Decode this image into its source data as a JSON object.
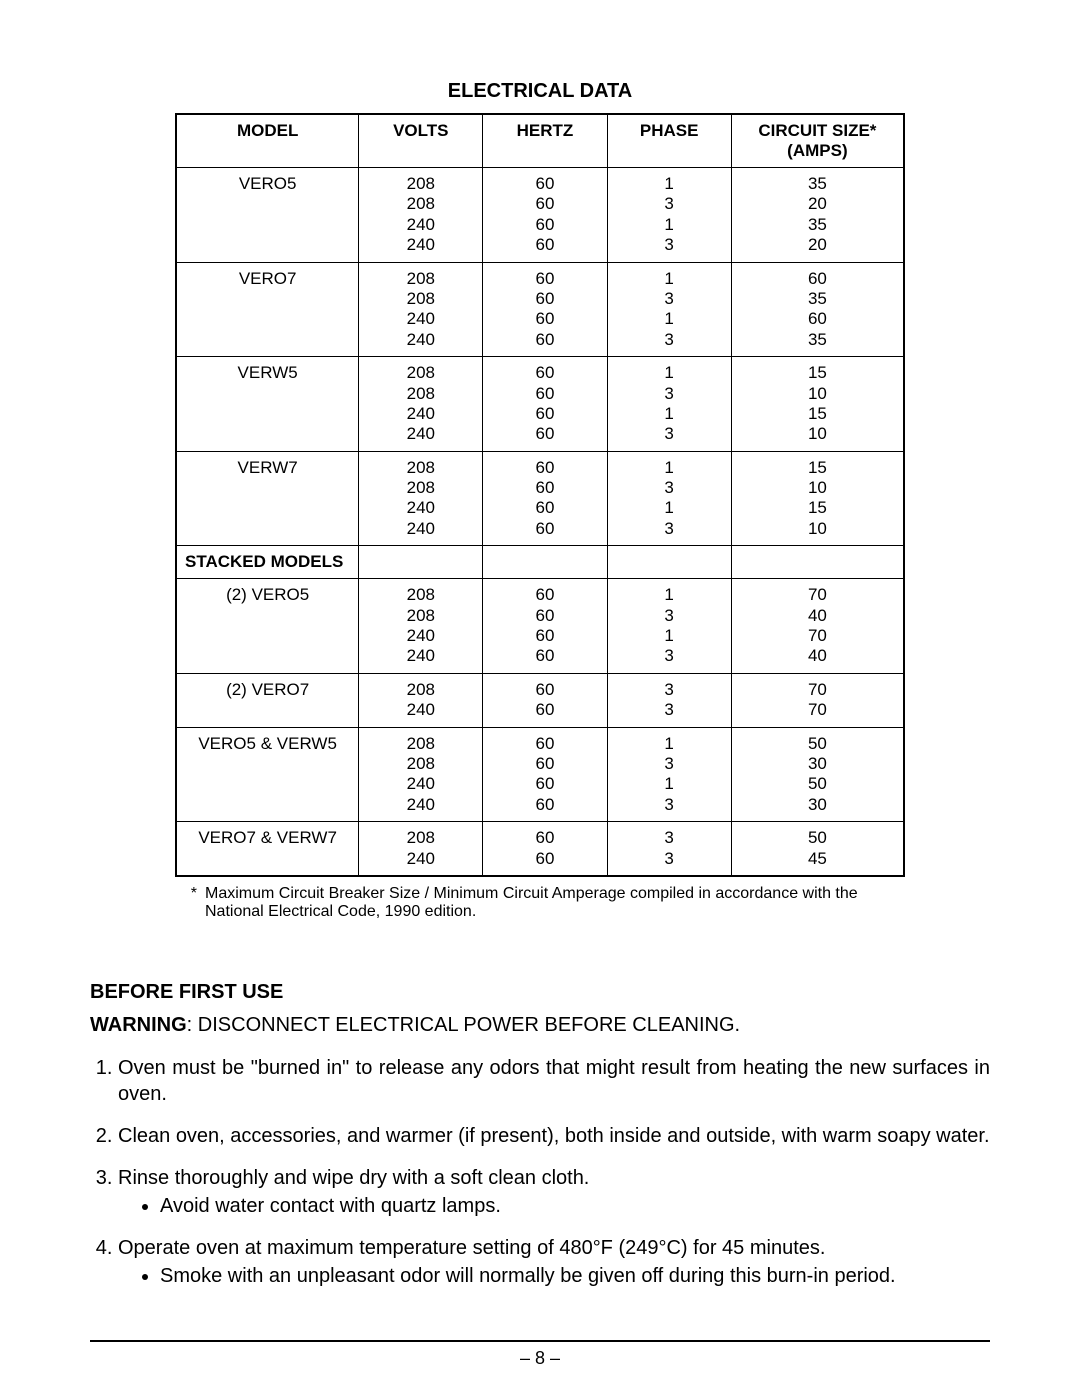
{
  "table": {
    "title": "ELECTRICAL DATA",
    "headers": {
      "model": "MODEL",
      "volts": "VOLTS",
      "hertz": "HERTZ",
      "phase": "PHASE",
      "circuit_line1": "CIRCUIT SIZE*",
      "circuit_line2": "(AMPS)"
    },
    "section_label": "STACKED MODELS",
    "rows": [
      {
        "model": "VERO5",
        "volts": [
          "208",
          "208",
          "240",
          "240"
        ],
        "hertz": [
          "60",
          "60",
          "60",
          "60"
        ],
        "phase": [
          "1",
          "3",
          "1",
          "3"
        ],
        "circuit": [
          "35",
          "20",
          "35",
          "20"
        ]
      },
      {
        "model": "VERO7",
        "volts": [
          "208",
          "208",
          "240",
          "240"
        ],
        "hertz": [
          "60",
          "60",
          "60",
          "60"
        ],
        "phase": [
          "1",
          "3",
          "1",
          "3"
        ],
        "circuit": [
          "60",
          "35",
          "60",
          "35"
        ]
      },
      {
        "model": "VERW5",
        "volts": [
          "208",
          "208",
          "240",
          "240"
        ],
        "hertz": [
          "60",
          "60",
          "60",
          "60"
        ],
        "phase": [
          "1",
          "3",
          "1",
          "3"
        ],
        "circuit": [
          "15",
          "10",
          "15",
          "10"
        ]
      },
      {
        "model": "VERW7",
        "volts": [
          "208",
          "208",
          "240",
          "240"
        ],
        "hertz": [
          "60",
          "60",
          "60",
          "60"
        ],
        "phase": [
          "1",
          "3",
          "1",
          "3"
        ],
        "circuit": [
          "15",
          "10",
          "15",
          "10"
        ]
      }
    ],
    "stacked_rows": [
      {
        "model": "(2) VERO5",
        "volts": [
          "208",
          "208",
          "240",
          "240"
        ],
        "hertz": [
          "60",
          "60",
          "60",
          "60"
        ],
        "phase": [
          "1",
          "3",
          "1",
          "3"
        ],
        "circuit": [
          "70",
          "40",
          "70",
          "40"
        ]
      },
      {
        "model": "(2) VERO7",
        "volts": [
          "208",
          "240"
        ],
        "hertz": [
          "60",
          "60"
        ],
        "phase": [
          "3",
          "3"
        ],
        "circuit": [
          "70",
          "70"
        ]
      },
      {
        "model": "VERO5 & VERW5",
        "volts": [
          "208",
          "208",
          "240",
          "240"
        ],
        "hertz": [
          "60",
          "60",
          "60",
          "60"
        ],
        "phase": [
          "1",
          "3",
          "1",
          "3"
        ],
        "circuit": [
          "50",
          "30",
          "50",
          "30"
        ]
      },
      {
        "model": "VERO7 & VERW7",
        "volts": [
          "208",
          "240"
        ],
        "hertz": [
          "60",
          "60"
        ],
        "phase": [
          "3",
          "3"
        ],
        "circuit": [
          "50",
          "45"
        ]
      }
    ],
    "footnote_star": "*",
    "footnote": "Maximum Circuit Breaker Size / Minimum Circuit Amperage compiled in accordance with the National Electrical Code, 1990 edition."
  },
  "before_first_use": {
    "heading": "BEFORE FIRST USE",
    "warning_label": "WARNING",
    "warning_text": ": DISCONNECT ELECTRICAL POWER BEFORE CLEANING.",
    "steps": [
      {
        "text": "Oven must be \"burned in\" to release any odors that might result from heating the new surfaces in oven.",
        "sub": []
      },
      {
        "text": "Clean oven, accessories, and warmer (if present), both inside and outside, with warm soapy water.",
        "sub": []
      },
      {
        "text": "Rinse thoroughly and wipe dry with a soft clean cloth.",
        "sub": [
          "Avoid water contact with quartz lamps."
        ]
      },
      {
        "text": "Operate oven at maximum temperature setting of 480°F (249°C) for 45 minutes.",
        "sub": [
          "Smoke with an unpleasant odor will normally be given off during this burn-in period."
        ]
      }
    ]
  },
  "page_number": "– 8 –",
  "colors": {
    "text": "#000000",
    "background": "#ffffff",
    "border": "#000000"
  },
  "typography": {
    "body_fontsize": 20,
    "table_fontsize": 17,
    "footnote_fontsize": 16
  }
}
